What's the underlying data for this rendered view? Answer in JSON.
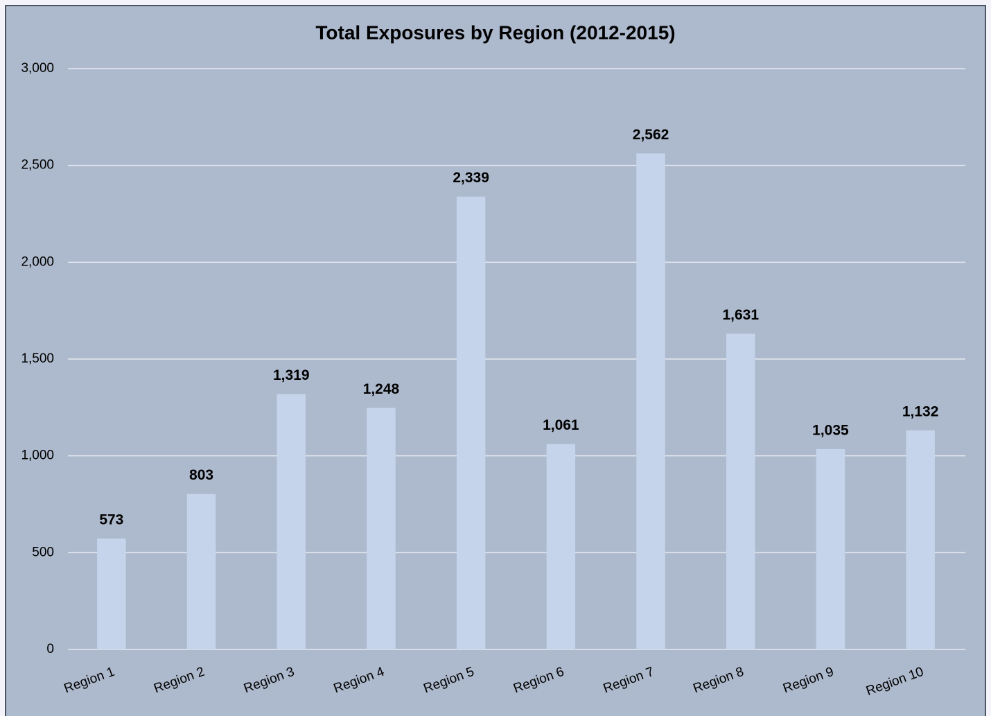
{
  "chart_data": {
    "type": "bar",
    "title": "Total Exposures by Region (2012-2015)",
    "categories": [
      "Region 1",
      "Region 2",
      "Region 3",
      "Region 4",
      "Region 5",
      "Region 6",
      "Region 7",
      "Region 8",
      "Region 9",
      "Region 10"
    ],
    "values": [
      573,
      803,
      1319,
      1248,
      2339,
      1061,
      2562,
      1631,
      1035,
      1132
    ],
    "value_labels": [
      "573",
      "803",
      "1,319",
      "1,248",
      "2,339",
      "1,061",
      "2,562",
      "1,631",
      "1,035",
      "1,132"
    ],
    "color": "#c5d4ea",
    "ylim": [
      0,
      3000
    ],
    "yticks": [
      0,
      500,
      {
        "value": 1000,
        "label": "1,000"
      },
      {
        "value": 1500,
        "label": "1,500"
      },
      {
        "value": 2000,
        "label": "2,000"
      },
      {
        "value": 2500,
        "label": "2,500"
      },
      {
        "value": 3000,
        "label": "3,000"
      }
    ],
    "grid": true
  }
}
